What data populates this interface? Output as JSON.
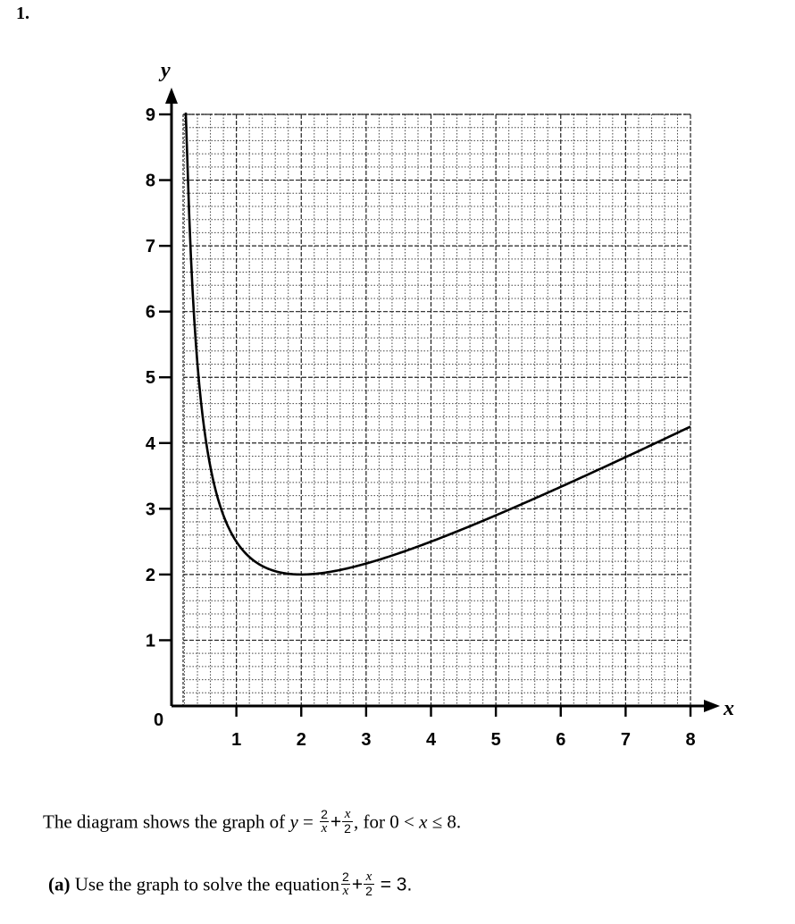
{
  "question": {
    "number": "1."
  },
  "chart_data": {
    "type": "line",
    "function": "y = 2/x + x/2",
    "x_range_plotted": [
      0.22,
      8
    ],
    "xlabel": "x",
    "ylabel": "y",
    "origin_label": "0",
    "xlim": [
      0,
      8
    ],
    "ylim": [
      0,
      9
    ],
    "x_ticks": [
      "1",
      "2",
      "3",
      "4",
      "5",
      "6",
      "7",
      "8"
    ],
    "y_ticks": [
      "1",
      "2",
      "3",
      "4",
      "5",
      "6",
      "7",
      "8",
      "9"
    ],
    "grid": "major every 1 unit (solid), minor every 0.2 unit (dotted)",
    "points": [
      {
        "x": 0.22,
        "y": 9.2
      },
      {
        "x": 0.25,
        "y": 8.13
      },
      {
        "x": 0.3,
        "y": 6.82
      },
      {
        "x": 0.4,
        "y": 5.2
      },
      {
        "x": 0.5,
        "y": 4.25
      },
      {
        "x": 0.6,
        "y": 3.63
      },
      {
        "x": 0.8,
        "y": 2.9
      },
      {
        "x": 1,
        "y": 2.5
      },
      {
        "x": 1.5,
        "y": 2.08
      },
      {
        "x": 2,
        "y": 2
      },
      {
        "x": 3,
        "y": 2.17
      },
      {
        "x": 4,
        "y": 2.5
      },
      {
        "x": 5,
        "y": 2.9
      },
      {
        "x": 6,
        "y": 3.33
      },
      {
        "x": 7,
        "y": 3.79
      },
      {
        "x": 8,
        "y": 4.25
      }
    ]
  },
  "text": {
    "desc_pre": "The diagram shows the graph of",
    "desc_y": "y",
    "desc_eq": " = ",
    "frac1_num": "2",
    "frac1_den": "x",
    "plus": "+",
    "frac2_num": "x",
    "frac2_den": "2",
    "desc_post": ", for 0 < ",
    "desc_x": "x",
    "desc_end": " ≤ 8.",
    "part_a_label": "(a)",
    "part_a_text": " Use the graph to solve the equation",
    "eq_frac1_num": "2",
    "eq_frac1_den": "x",
    "eq_plus": "+",
    "eq_frac2_num": "x",
    "eq_frac2_den": "2",
    "eq_end": " = 3."
  }
}
